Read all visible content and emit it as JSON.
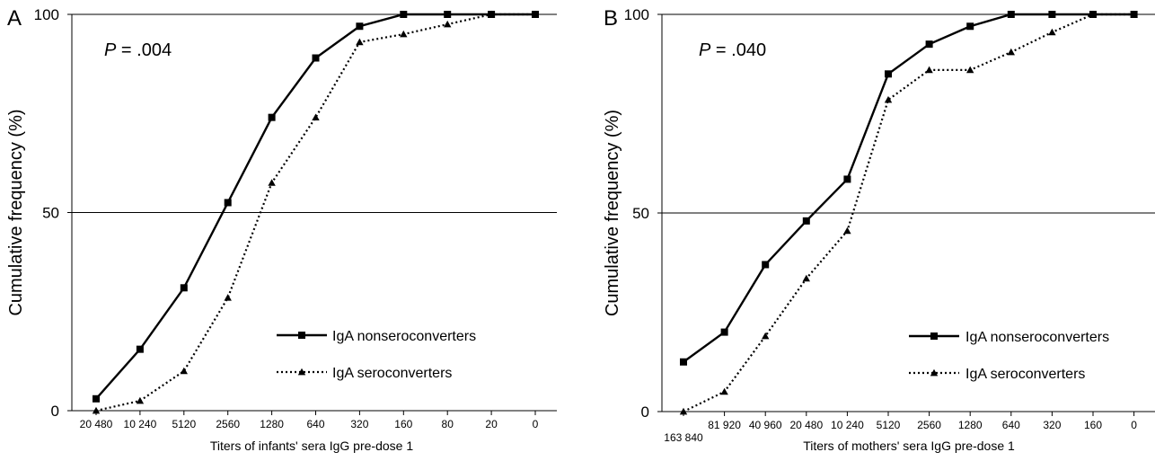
{
  "chart_data": [
    {
      "panel": "A",
      "type": "line",
      "annotation_p_label": "P",
      "annotation_p_value": "= .004",
      "xlabel": "Titers of infants' sera IgG pre-dose 1",
      "ylabel": "Cumulative frequency (%)",
      "ylim": [
        0,
        100
      ],
      "yticks": [
        "0",
        "50",
        "100"
      ],
      "gridlines_y": [
        50,
        100
      ],
      "legend_position": "lower-right",
      "categories": [
        "20 480",
        "10 240",
        "5120",
        "2560",
        "1280",
        "640",
        "320",
        "160",
        "80",
        "20",
        "0"
      ],
      "series": [
        {
          "name": "IgA nonseroconverters",
          "style": "solid",
          "marker": "square",
          "values": [
            3,
            15.5,
            31,
            52.5,
            74,
            89,
            97,
            100,
            100,
            100,
            100
          ]
        },
        {
          "name": "IgA seroconverters",
          "style": "dotted",
          "marker": "triangle",
          "values": [
            0,
            2.5,
            10,
            28.5,
            57.5,
            74,
            93,
            95,
            97.5,
            100,
            100
          ]
        }
      ]
    },
    {
      "panel": "B",
      "type": "line",
      "annotation_p_label": "P",
      "annotation_p_value": "= .040",
      "xlabel": "Titers of mothers' sera IgG pre-dose 1",
      "ylabel": "Cumulative frequency (%)",
      "ylim": [
        0,
        100
      ],
      "yticks": [
        "0",
        "50",
        "100"
      ],
      "gridlines_y": [
        50,
        100
      ],
      "legend_position": "lower-right",
      "categories": [
        "163 840",
        "81 920",
        "40 960",
        "20 480",
        "10 240",
        "5120",
        "2560",
        "1280",
        "640",
        "320",
        "160",
        "0"
      ],
      "series": [
        {
          "name": "IgA nonseroconverters",
          "style": "solid",
          "marker": "square",
          "values": [
            12.5,
            20,
            37,
            48,
            58.5,
            85,
            92.5,
            97,
            100,
            100,
            100,
            100
          ]
        },
        {
          "name": "IgA seroconverters",
          "style": "dotted",
          "marker": "triangle",
          "values": [
            0,
            5,
            19,
            33.5,
            45.5,
            78.5,
            86,
            86,
            90.5,
            95.5,
            100,
            100
          ]
        }
      ]
    }
  ]
}
